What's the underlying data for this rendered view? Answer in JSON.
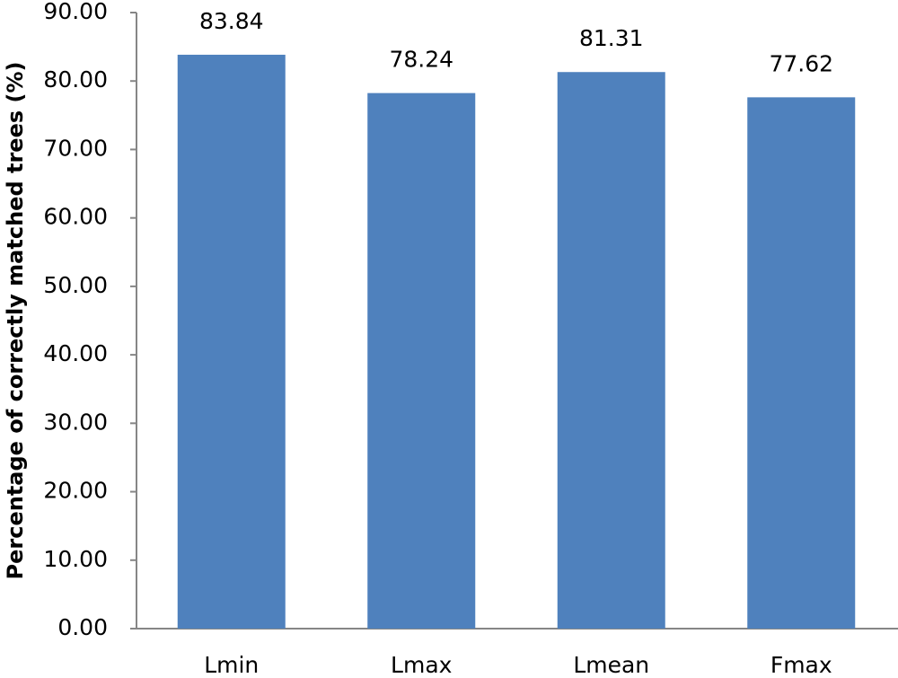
{
  "chart_data": {
    "type": "bar",
    "y_label": "Percentage of correctly matched trees (%)",
    "categories": [
      "Lmin",
      "Lmax",
      "Lmean",
      "Fmax"
    ],
    "values": [
      83.84,
      78.24,
      81.31,
      77.62
    ],
    "color": "#4f81bd",
    "ylim": [
      0,
      90
    ],
    "yticks": [
      {
        "value": 0,
        "label": "0.00"
      },
      {
        "value": 10,
        "label": "10.00"
      },
      {
        "value": 20,
        "label": "20.00"
      },
      {
        "value": 30,
        "label": "30.00"
      },
      {
        "value": 40,
        "label": "40.00"
      },
      {
        "value": 50,
        "label": "50.00"
      },
      {
        "value": 60,
        "label": "60.00"
      },
      {
        "value": 70,
        "label": "70.00"
      },
      {
        "value": 80,
        "label": "80.00"
      },
      {
        "value": 90,
        "label": "90.00"
      }
    ],
    "grid": false
  }
}
